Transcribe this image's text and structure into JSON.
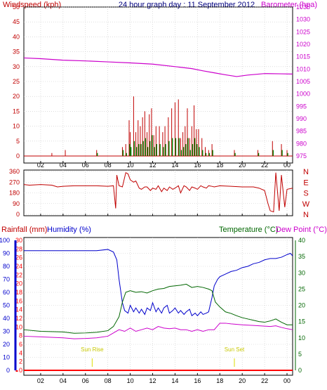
{
  "header": {
    "left_label": "Windspeed (kph)",
    "center_title": "24 hour graph day : 11 September 2012",
    "right_label": "Barometer (hpa)"
  },
  "colors": {
    "background": "#ffffff",
    "panel_border": "#000000",
    "grid": "#c8c8c8",
    "wind_axis": "#c00000",
    "wind_gust": "#c00000",
    "wind_avg": "#008000",
    "wind_dir": "#c00000",
    "barometer": "#cc00cc",
    "rain": "#ff0000",
    "humidity": "#0000cc",
    "temperature": "#006600",
    "dewpoint": "#cc00cc",
    "sun_marker": "#dddd00",
    "humidity_axis_bar": "#0000cc",
    "rain_axis_bar": "#ff0000",
    "temp_axis": "#006600"
  },
  "x_axis": {
    "ticks": [
      "02",
      "04",
      "06",
      "08",
      "10",
      "12",
      "14",
      "16",
      "18",
      "20",
      "22",
      "00"
    ],
    "start_hour": 0.5,
    "end_hour": 24.5
  },
  "chart_data": [
    {
      "type": "line",
      "name": "wind_and_barometer",
      "yleft": {
        "label": "Windspeed (kph)",
        "ticks": [
          0,
          5,
          10,
          15,
          20,
          25,
          30,
          35,
          40,
          45,
          50
        ],
        "range": [
          0,
          50
        ]
      },
      "yright": {
        "label": "Barometer (hpa)",
        "ticks": [
          975,
          980,
          985,
          990,
          995,
          1000,
          1005,
          1010,
          1015,
          1020,
          1025,
          1030,
          1035
        ],
        "range": [
          975,
          1035
        ]
      },
      "barometer": {
        "x": [
          0.5,
          2,
          4,
          6,
          8,
          10,
          12,
          14,
          15.5,
          16.5,
          17.5,
          18.5,
          19.5,
          20.5,
          22,
          23.5,
          24.5
        ],
        "y": [
          1014.5,
          1014.2,
          1013.6,
          1013.3,
          1012.9,
          1012.5,
          1012.0,
          1011.0,
          1010.2,
          1009.3,
          1008.5,
          1007.7,
          1007.0,
          1007.6,
          1008.2,
          1008.1,
          1008.0
        ]
      },
      "wind_bars": {
        "x": [
          3.0,
          4.2,
          7.0,
          9.3,
          9.6,
          9.9,
          10.0,
          10.3,
          10.5,
          10.7,
          10.9,
          11.1,
          11.3,
          11.5,
          11.7,
          11.9,
          12.1,
          12.3,
          12.6,
          12.9,
          13.1,
          13.4,
          13.7,
          14.0,
          14.3,
          14.5,
          14.7,
          14.9,
          15.1,
          15.3,
          15.5,
          15.7,
          15.9,
          16.1,
          16.4,
          16.7,
          17.0,
          17.3,
          19.3,
          21.4,
          22.7,
          23.5,
          24.0
        ],
        "gust": [
          1,
          2,
          2,
          3,
          4,
          12,
          8,
          20,
          8,
          12,
          10,
          13,
          15,
          8,
          14,
          16,
          7,
          10,
          10,
          8,
          10,
          13,
          16,
          18,
          19,
          6,
          8,
          10,
          16,
          6,
          10,
          17,
          9,
          9,
          6,
          3,
          2,
          4,
          2,
          2,
          5,
          4,
          2
        ],
        "avg": [
          0,
          0,
          1,
          2,
          1,
          4,
          3,
          5,
          3,
          4,
          4,
          5,
          6,
          3,
          5,
          7,
          3,
          4,
          4,
          3,
          4,
          5,
          6,
          6,
          6,
          2,
          3,
          4,
          6,
          2,
          4,
          6,
          4,
          3,
          2,
          1,
          1,
          2,
          1,
          1,
          2,
          2,
          1
        ]
      }
    },
    {
      "type": "line",
      "name": "wind_direction",
      "yleft": {
        "ticks": [
          0,
          90,
          180,
          270,
          360
        ],
        "range": [
          0,
          360
        ]
      },
      "yright": {
        "ticks": [
          "N",
          "E",
          "S",
          "W",
          "N"
        ]
      },
      "x": [
        0.5,
        1,
        2,
        3,
        3.5,
        4,
        5,
        6,
        7,
        8,
        8.5,
        8.7,
        8.8,
        9,
        9.3,
        9.6,
        9.8,
        10,
        10.3,
        10.5,
        10.8,
        11,
        11.3,
        11.5,
        11.8,
        12,
        12.3,
        12.5,
        12.8,
        13,
        13.3,
        13.5,
        13.8,
        14,
        14.3,
        14.5,
        14.8,
        15,
        15.3,
        15.5,
        15.8,
        16,
        16.3,
        16.5,
        16.8,
        17,
        17.3,
        17.5,
        18,
        19,
        20,
        21,
        21.5,
        22,
        22.3,
        22.5,
        22.8,
        23,
        23.3,
        23.5,
        23.8,
        24,
        24.5
      ],
      "y": [
        250,
        245,
        250,
        245,
        230,
        235,
        240,
        240,
        240,
        235,
        240,
        50,
        330,
        240,
        230,
        350,
        340,
        290,
        270,
        280,
        220,
        210,
        230,
        230,
        200,
        220,
        210,
        240,
        190,
        220,
        200,
        230,
        210,
        220,
        240,
        180,
        240,
        230,
        200,
        230,
        220,
        210,
        240,
        230,
        220,
        240,
        235,
        230,
        240,
        235,
        230,
        230,
        220,
        200,
        90,
        30,
        20,
        350,
        30,
        330,
        60,
        210,
        220
      ]
    },
    {
      "type": "line",
      "name": "rain_humidity_temperature_dewpoint",
      "humidity_axis": {
        "label": "Humidity (%)",
        "ticks": [
          0,
          10,
          20,
          30,
          40,
          50,
          60,
          70,
          80,
          90,
          100
        ],
        "range": [
          0,
          100
        ]
      },
      "rain_axis": {
        "label": "Rainfall (mm)",
        "ticks": [
          0,
          2,
          4,
          6,
          8,
          10,
          12,
          14,
          16,
          18,
          20,
          22,
          24,
          26,
          28,
          30
        ],
        "range": [
          0,
          30
        ]
      },
      "temp_axis": {
        "label": "Temperature (°C)",
        "ticks": [
          0,
          5,
          10,
          15,
          20,
          25,
          30,
          35,
          40
        ],
        "range": [
          0,
          40
        ]
      },
      "dewpoint_label": "Dew Point (°C)",
      "humidity": {
        "x": [
          0.5,
          2,
          4,
          6,
          7,
          8,
          8.5,
          8.8,
          9,
          9.3,
          9.5,
          9.8,
          10,
          10.3,
          10.5,
          10.8,
          11,
          11.3,
          11.5,
          11.8,
          12,
          12.3,
          12.5,
          12.8,
          13,
          13.3,
          13.5,
          13.8,
          14,
          14.3,
          14.5,
          14.8,
          15,
          15.3,
          15.5,
          15.8,
          16,
          16.3,
          16.5,
          16.8,
          17,
          17.3,
          17.5,
          17.8,
          18,
          18.5,
          19,
          19.5,
          20,
          20.5,
          21,
          21.5,
          22,
          22.5,
          23,
          23.5,
          24,
          24.3,
          24.5
        ],
        "y": [
          92,
          92,
          92,
          92,
          92,
          93,
          91,
          85,
          70,
          52,
          46,
          44,
          50,
          45,
          48,
          44,
          47,
          43,
          48,
          46,
          52,
          45,
          48,
          44,
          48,
          50,
          44,
          46,
          48,
          44,
          46,
          43,
          45,
          47,
          42,
          44,
          42,
          45,
          43,
          44,
          45,
          56,
          65,
          70,
          72,
          74,
          76,
          77,
          79,
          80,
          82,
          83,
          85,
          86,
          86,
          87,
          89,
          90,
          88
        ]
      },
      "temperature": {
        "x": [
          0.5,
          2,
          4,
          5,
          6,
          7,
          8,
          8.5,
          9,
          9.3,
          9.6,
          10,
          10.5,
          11,
          11.5,
          12,
          12.5,
          13,
          13.5,
          14,
          14.5,
          15,
          15.5,
          16,
          16.5,
          17,
          17.3,
          17.6,
          18,
          18.5,
          19,
          19.5,
          20,
          20.5,
          21,
          21.5,
          22,
          22.5,
          23,
          23.5,
          24,
          24.5
        ],
        "y": [
          12.5,
          12.0,
          11.8,
          11.4,
          11.5,
          11.7,
          12.2,
          13.5,
          16.5,
          21.0,
          24.0,
          24.5,
          24.0,
          24.2,
          23.8,
          24.5,
          25.0,
          25.2,
          25.8,
          26.0,
          26.2,
          26.5,
          25.5,
          25.8,
          25.5,
          25.0,
          24.5,
          21.0,
          19.5,
          18.0,
          17.5,
          16.8,
          16.2,
          15.8,
          15.4,
          15.0,
          14.8,
          15.2,
          15.8,
          14.8,
          14.0,
          14.0
        ]
      },
      "dewpoint": {
        "x": [
          0.5,
          2,
          4,
          5,
          6,
          7,
          8,
          8.5,
          9,
          9.5,
          10,
          10.5,
          11,
          11.5,
          12,
          12.5,
          13,
          13.5,
          14,
          14.5,
          15,
          15.5,
          16,
          16.5,
          17,
          17.5,
          18,
          18.5,
          19,
          20,
          21,
          22,
          22.5,
          23,
          23.5,
          24,
          24.5
        ],
        "y": [
          10.5,
          10.3,
          10.0,
          9.7,
          9.8,
          10.0,
          10.5,
          11.5,
          12.5,
          12.0,
          13.0,
          12.0,
          12.5,
          13.0,
          12.5,
          13.5,
          13.0,
          12.8,
          13.0,
          12.5,
          12.5,
          12.0,
          12.5,
          12.0,
          12.5,
          12.5,
          14.5,
          14.5,
          14.3,
          14.0,
          13.8,
          13.6,
          13.5,
          13.7,
          13.2,
          12.8,
          12.5
        ]
      },
      "rainfall": {
        "x": [
          0.5,
          24.5
        ],
        "y": [
          0,
          0
        ]
      },
      "sun_rise": {
        "label": "Sun Rise",
        "hour": 6.6
      },
      "sun_set": {
        "label": "Sun Set",
        "hour": 19.3
      }
    }
  ]
}
